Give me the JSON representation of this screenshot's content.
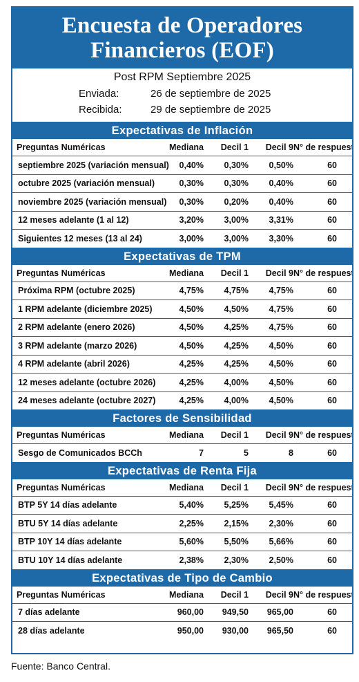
{
  "title_line1": "Encuesta de Operadores",
  "title_line2": "Financieros (EOF)",
  "subtitle": "Post RPM Septiembre 2025",
  "sent_label": "Enviada:",
  "sent_date": "26 de septiembre de 2025",
  "received_label": "Recibida:",
  "received_date": "29 de septiembre de 2025",
  "columns": [
    "Preguntas Numéricas",
    "Mediana",
    "Decil 1",
    "Decil 9",
    "N° de respuestas"
  ],
  "sections": [
    {
      "title": "Expectativas de Inflación",
      "rows": [
        [
          "septiembre 2025 (variación mensual)",
          "0,40%",
          "0,30%",
          "0,50%",
          "60"
        ],
        [
          "octubre 2025 (variación mensual)",
          "0,30%",
          "0,30%",
          "0,40%",
          "60"
        ],
        [
          "noviembre 2025 (variación mensual)",
          "0,30%",
          "0,20%",
          "0,40%",
          "60"
        ],
        [
          "12 meses adelante (1 al 12)",
          "3,20%",
          "3,00%",
          "3,31%",
          "60"
        ],
        [
          "Siguientes 12 meses (13 al 24)",
          "3,00%",
          "3,00%",
          "3,30%",
          "60"
        ]
      ]
    },
    {
      "title": "Expectativas de TPM",
      "rows": [
        [
          "Próxima RPM (octubre 2025)",
          "4,75%",
          "4,75%",
          "4,75%",
          "60"
        ],
        [
          "1 RPM adelante (diciembre 2025)",
          "4,50%",
          "4,50%",
          "4,75%",
          "60"
        ],
        [
          "2 RPM adelante (enero 2026)",
          "4,50%",
          "4,25%",
          "4,75%",
          "60"
        ],
        [
          "3 RPM adelante (marzo 2026)",
          "4,50%",
          "4,25%",
          "4,50%",
          "60"
        ],
        [
          "4 RPM adelante (abril 2026)",
          "4,25%",
          "4,25%",
          "4,50%",
          "60"
        ],
        [
          "12 meses adelante (octubre 2026)",
          "4,25%",
          "4,00%",
          "4,50%",
          "60"
        ],
        [
          "24 meses adelante (octubre 2027)",
          "4,25%",
          "4,00%",
          "4,50%",
          "60"
        ]
      ]
    },
    {
      "title": "Factores de Sensibilidad",
      "rows": [
        [
          "Sesgo de Comunicados BCCh",
          "7",
          "5",
          "8",
          "60"
        ]
      ]
    },
    {
      "title": "Expectativas  de Renta Fija",
      "rows": [
        [
          "BTP 5Y 14 días adelante",
          "5,40%",
          "5,25%",
          "5,45%",
          "60"
        ],
        [
          "BTU 5Y 14 días adelante",
          "2,25%",
          "2,15%",
          "2,30%",
          "60"
        ],
        [
          "BTP 10Y 14 días adelante",
          "5,60%",
          "5,50%",
          "5,66%",
          "60"
        ],
        [
          "BTU 10Y 14 días adelante",
          "2,38%",
          "2,30%",
          "2,50%",
          "60"
        ]
      ]
    },
    {
      "title": "Expectativas  de Tipo de Cambio",
      "rows": [
        [
          "7 días adelante",
          "960,00",
          "949,50",
          "965,00",
          "60"
        ],
        [
          "28 días adelante",
          "950,00",
          "930,00",
          "965,50",
          "60"
        ]
      ]
    }
  ],
  "footer": "Fuente: Banco Central."
}
